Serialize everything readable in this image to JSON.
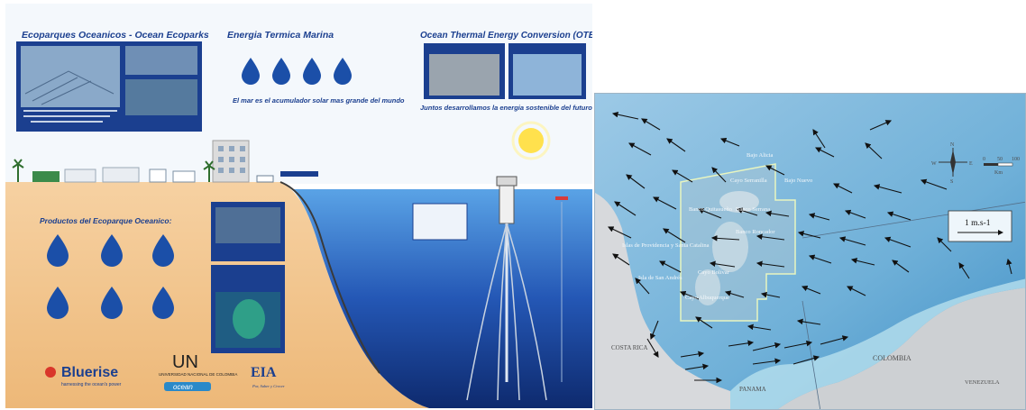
{
  "poster": {
    "section_ecoparques": "Ecoparques Oceanicos - Ocean Ecoparks",
    "section_energia": "Energia Termica Marina",
    "section_otec": "Ocean Thermal Energy Conversion (OTEC)",
    "tagline_sea": "El mar es el acumulador solar mas grande del mundo",
    "tagline_future": "Juntos desarrollamos la energia sostenible del futuro!",
    "productos_title": "Productos del Ecoparque Oceanico:",
    "colors": {
      "navy": "#1b3f8f",
      "sand": "#f2c58f",
      "sea": "#1f4fa8",
      "sky": "#f4f8fc"
    },
    "logos": {
      "bluerise": "Bluerise",
      "bluerise_tagline": "harnessing the ocean's power",
      "un": "UN",
      "un_name": "UNIVERSIDAD NACIONAL DE COLOMBIA",
      "oceanwise": "ocean",
      "eia": "EIA",
      "eia_tagline": "Por, Saber y Crecer"
    }
  },
  "map": {
    "scale_label": "1 m.s-1",
    "compass": {
      "n": "N",
      "s": "S",
      "e": "E",
      "w": "W"
    },
    "scale_ticks": [
      "0",
      "50",
      "100"
    ],
    "scale_unit": "Km",
    "labels": {
      "bajo_alicia": "Bajo Alicia",
      "cayo_serranilla": "Cayo Serranilla",
      "bajo_nuevo": "Bajo Nuevo",
      "banco_quitasueno": "Banco Quitasueño",
      "banco_serrana": "Banco Serrana",
      "banco_roncador": "Banco Roncador",
      "islas_providencia": "Islas de Providencia y Santa Catalina",
      "isla_san_andres": "Isla de San Andrés",
      "cayo_bolivar": "Cayo Bolívar",
      "cayo_albuquerque": "Cayo Albuquerque",
      "costa_rica": "COSTA RICA",
      "panama": "PANAMA",
      "colombia": "COLOMBIA",
      "venezuela": "VENEZUELA"
    }
  }
}
